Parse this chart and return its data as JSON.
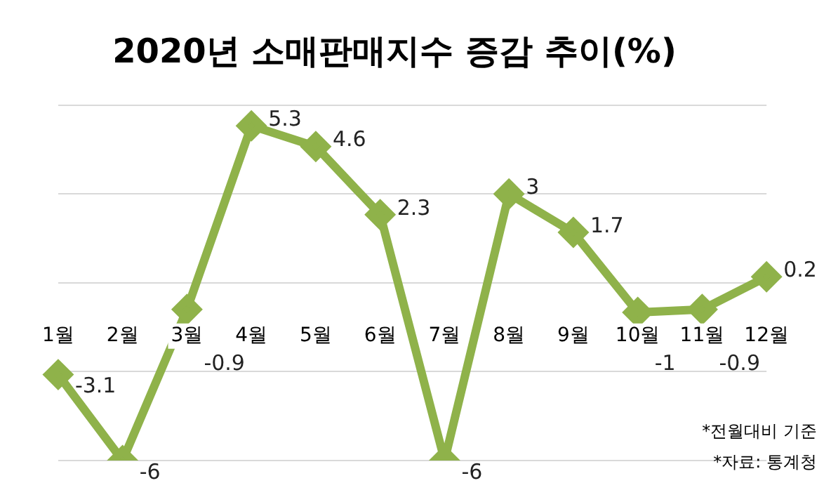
{
  "chart_data": {
    "type": "line",
    "title": "2020년 소매판매지수 증감 추이(%)",
    "categories": [
      "1월",
      "2월",
      "3월",
      "4월",
      "5월",
      "6월",
      "7월",
      "8월",
      "9월",
      "10월",
      "11월",
      "12월"
    ],
    "series": [
      {
        "color": "#8fb24a",
        "values": [
          -3.1,
          -6,
          -0.9,
          5.3,
          4.6,
          2.3,
          -6,
          3,
          1.7,
          -1,
          -0.9,
          0.2
        ]
      }
    ],
    "ylim": [
      -6,
      6
    ],
    "yticks": [
      {
        "value": -6,
        "label": null
      },
      {
        "value": -3,
        "label": null
      },
      {
        "value": 0,
        "label": null
      },
      {
        "value": 3,
        "label": null
      },
      {
        "value": 6,
        "label": null
      }
    ],
    "grid": "y",
    "tick_labels": "x",
    "marker": "diamond",
    "data_labels": true,
    "annotations": [
      "*전월대비 기준",
      "*자료: 통계청"
    ]
  }
}
